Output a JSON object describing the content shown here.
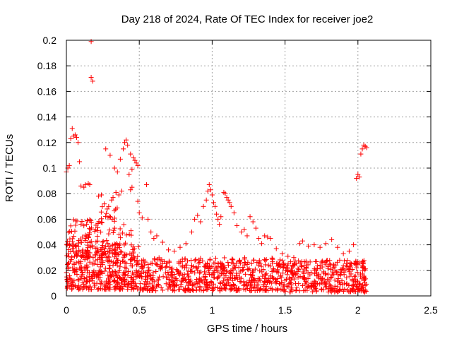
{
  "chart_data": {
    "type": "scatter",
    "title": "Day 218 of 2024, Rate Of TEC Index for receiver joe2",
    "xlabel": "GPS time / hours",
    "ylabel": "ROTI / TECUs",
    "xlim": [
      0,
      2.5
    ],
    "ylim": [
      0,
      0.2
    ],
    "xticks": [
      0,
      0.5,
      1,
      1.5,
      2,
      2.5
    ],
    "xtick_labels": [
      "0",
      "0.5",
      "1",
      "1.5",
      "2",
      "2.5"
    ],
    "yticks": [
      0,
      0.02,
      0.04,
      0.06,
      0.08,
      0.1,
      0.12,
      0.14,
      0.16,
      0.18,
      0.2
    ],
    "ytick_labels": [
      "0",
      "0.02",
      "0.04",
      "0.06",
      "0.08",
      "0.1",
      "0.12",
      "0.14",
      "0.16",
      "0.18",
      "0.2"
    ],
    "grid": true,
    "marker": "+",
    "color": "#ff0000",
    "series": [
      {
        "name": "ROTI",
        "points": [
          [
            0.0,
            0.097
          ],
          [
            0.01,
            0.1
          ],
          [
            0.02,
            0.102
          ],
          [
            0.03,
            0.123
          ],
          [
            0.04,
            0.131
          ],
          [
            0.05,
            0.125
          ],
          [
            0.06,
            0.126
          ],
          [
            0.07,
            0.124
          ],
          [
            0.08,
            0.12
          ],
          [
            0.09,
            0.105
          ],
          [
            0.1,
            0.086
          ],
          [
            0.12,
            0.085
          ],
          [
            0.13,
            0.087
          ],
          [
            0.15,
            0.088
          ],
          [
            0.16,
            0.087
          ],
          [
            0.17,
            0.199
          ],
          [
            0.17,
            0.171
          ],
          [
            0.18,
            0.168
          ],
          [
            0.22,
            0.078
          ],
          [
            0.24,
            0.079
          ],
          [
            0.26,
            0.072
          ],
          [
            0.27,
            0.115
          ],
          [
            0.28,
            0.068
          ],
          [
            0.29,
            0.07
          ],
          [
            0.3,
            0.11
          ],
          [
            0.31,
            0.075
          ],
          [
            0.32,
            0.077
          ],
          [
            0.33,
            0.1
          ],
          [
            0.34,
            0.081
          ],
          [
            0.35,
            0.097
          ],
          [
            0.36,
            0.079
          ],
          [
            0.37,
            0.107
          ],
          [
            0.38,
            0.082
          ],
          [
            0.39,
            0.115
          ],
          [
            0.4,
            0.12
          ],
          [
            0.41,
            0.122
          ],
          [
            0.42,
            0.118
          ],
          [
            0.43,
            0.095
          ],
          [
            0.44,
            0.111
          ],
          [
            0.45,
            0.099
          ],
          [
            0.46,
            0.108
          ],
          [
            0.47,
            0.106
          ],
          [
            0.48,
            0.104
          ],
          [
            0.49,
            0.102
          ],
          [
            0.44,
            0.083
          ],
          [
            0.45,
            0.085
          ],
          [
            0.49,
            0.074
          ],
          [
            0.5,
            0.065
          ],
          [
            0.52,
            0.061
          ],
          [
            0.55,
            0.087
          ],
          [
            0.56,
            0.06
          ],
          [
            0.58,
            0.05
          ],
          [
            0.6,
            0.045
          ],
          [
            0.62,
            0.047
          ],
          [
            0.66,
            0.042
          ],
          [
            0.7,
            0.036
          ],
          [
            0.74,
            0.035
          ],
          [
            0.78,
            0.038
          ],
          [
            0.82,
            0.041
          ],
          [
            0.86,
            0.05
          ],
          [
            0.88,
            0.06
          ],
          [
            0.9,
            0.063
          ],
          [
            0.92,
            0.058
          ],
          [
            0.94,
            0.07
          ],
          [
            0.96,
            0.075
          ],
          [
            0.97,
            0.082
          ],
          [
            0.98,
            0.087
          ],
          [
            0.99,
            0.083
          ],
          [
            1.0,
            0.079
          ],
          [
            1.01,
            0.073
          ],
          [
            1.02,
            0.07
          ],
          [
            1.03,
            0.064
          ],
          [
            1.04,
            0.06
          ],
          [
            1.05,
            0.056
          ],
          [
            1.06,
            0.062
          ],
          [
            1.08,
            0.081
          ],
          [
            1.09,
            0.08
          ],
          [
            1.1,
            0.077
          ],
          [
            1.11,
            0.075
          ],
          [
            1.12,
            0.073
          ],
          [
            1.13,
            0.07
          ],
          [
            1.15,
            0.065
          ],
          [
            1.17,
            0.055
          ],
          [
            1.2,
            0.05
          ],
          [
            1.22,
            0.052
          ],
          [
            1.24,
            0.047
          ],
          [
            1.26,
            0.062
          ],
          [
            1.28,
            0.058
          ],
          [
            1.3,
            0.053
          ],
          [
            1.32,
            0.045
          ],
          [
            1.34,
            0.041
          ],
          [
            1.36,
            0.047
          ],
          [
            1.38,
            0.046
          ],
          [
            1.4,
            0.045
          ],
          [
            1.44,
            0.037
          ],
          [
            1.48,
            0.033
          ],
          [
            1.52,
            0.031
          ],
          [
            1.56,
            0.03
          ],
          [
            1.6,
            0.041
          ],
          [
            1.62,
            0.043
          ],
          [
            1.66,
            0.039
          ],
          [
            1.7,
            0.04
          ],
          [
            1.74,
            0.038
          ],
          [
            1.78,
            0.041
          ],
          [
            1.82,
            0.044
          ],
          [
            1.86,
            0.038
          ],
          [
            1.9,
            0.033
          ],
          [
            1.94,
            0.035
          ],
          [
            1.97,
            0.04
          ],
          [
            1.99,
            0.092
          ],
          [
            2.0,
            0.095
          ],
          [
            2.01,
            0.093
          ],
          [
            2.02,
            0.111
          ],
          [
            2.03,
            0.115
          ],
          [
            2.04,
            0.118
          ],
          [
            2.05,
            0.117
          ],
          [
            2.06,
            0.116
          ]
        ]
      }
    ]
  }
}
